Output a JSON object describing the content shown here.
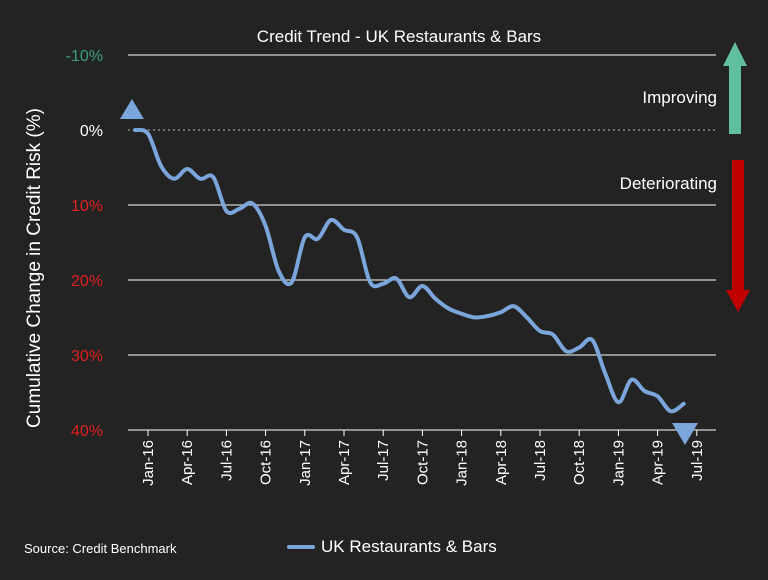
{
  "chart_data": {
    "type": "line",
    "title": "Credit Trend - UK Restaurants & Bars",
    "ylabel": "Cumulative Change in Credit Risk (%)",
    "ylim": [
      -10,
      40
    ],
    "y_inverted": true,
    "y_ticks": [
      {
        "value": -10,
        "label": "-10%",
        "color": "#3aa07a"
      },
      {
        "value": 0,
        "label": "0%",
        "color": "#ffffff"
      },
      {
        "value": 10,
        "label": "10%",
        "color": "#e02020"
      },
      {
        "value": 20,
        "label": "20%",
        "color": "#e02020"
      },
      {
        "value": 30,
        "label": "30%",
        "color": "#e02020"
      },
      {
        "value": 40,
        "label": "40%",
        "color": "#e02020"
      }
    ],
    "x_ticks": [
      "Jan-16",
      "Apr-16",
      "Jul-16",
      "Oct-16",
      "Jan-17",
      "Apr-17",
      "Jul-17",
      "Oct-17",
      "Jan-18",
      "Apr-18",
      "Jul-18",
      "Oct-18",
      "Jan-19",
      "Apr-19",
      "Jul-19"
    ],
    "grid": true,
    "legend_position": "bottom",
    "series": [
      {
        "name": "UK Restaurants & Bars",
        "color": "#7aa6dc",
        "x": [
          "2015-12",
          "2016-01",
          "2016-02",
          "2016-03",
          "2016-04",
          "2016-05",
          "2016-06",
          "2016-07",
          "2016-08",
          "2016-09",
          "2016-10",
          "2016-11",
          "2016-12",
          "2017-01",
          "2017-02",
          "2017-03",
          "2017-04",
          "2017-05",
          "2017-06",
          "2017-07",
          "2017-08",
          "2017-09",
          "2017-10",
          "2017-11",
          "2017-12",
          "2018-01",
          "2018-02",
          "2018-03",
          "2018-04",
          "2018-05",
          "2018-06",
          "2018-07",
          "2018-08",
          "2018-09",
          "2018-10",
          "2018-11",
          "2018-12",
          "2019-01",
          "2019-02",
          "2019-03",
          "2019-04",
          "2019-05",
          "2019-06"
        ],
        "values": [
          0,
          0.5,
          4.8,
          6.5,
          5.2,
          6.5,
          6.3,
          10.8,
          10.5,
          9.8,
          12.8,
          18.8,
          20.3,
          14.3,
          14.5,
          12,
          13.3,
          14.3,
          20.3,
          20.5,
          19.8,
          22.3,
          20.8,
          22.5,
          23.8,
          24.5,
          25,
          24.8,
          24.3,
          23.5,
          25,
          26.8,
          27.3,
          29.5,
          29,
          28,
          32.5,
          36.3,
          33.3,
          34.8,
          35.5,
          37.5,
          36.5
        ]
      }
    ],
    "annotations": [
      {
        "text": "Improving",
        "color": "#5fbfa0"
      },
      {
        "text": "Deteriorating",
        "color": "#c00000"
      }
    ],
    "marker_color": "#7aa6dc"
  },
  "source_text": "Source: Credit Benchmark"
}
